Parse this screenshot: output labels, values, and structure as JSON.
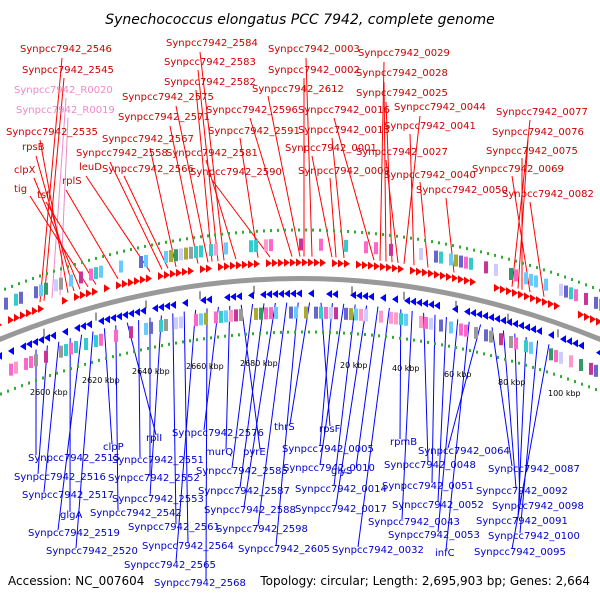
{
  "title": "Synechococcus elongatus PCC 7942, complete genome",
  "footer": {
    "accession": "Accession: NC_007604",
    "info": "Topology: circular; Length: 2,695,903 bp; Genes: 2,664"
  },
  "colors": {
    "forward": "#ff0000",
    "reverse": "#0000ff",
    "rna": "#ee88cc",
    "backbone": "#999999"
  },
  "ticks": [
    "2600 kbp",
    "2620 kbp",
    "2640 kbp",
    "2660 kbp",
    "2680 kbp",
    "20 kbp",
    "40 kbp",
    "60 kbp",
    "80 kbp",
    "100 kbp"
  ],
  "top_labels": [
    "Synpcc7942_2546",
    "Synpcc7942_2545",
    "Synpcc7942_R0020",
    "Synpcc7942_R0019",
    "Synpcc7942_2535",
    "rpsB",
    "clpX",
    "tig",
    "tsf",
    "rplS",
    "leuD",
    "Synpcc7942_2558",
    "Synpcc7942_2566",
    "Synpcc7942_2567",
    "Synpcc7942_2571",
    "Synpcc7942_2575",
    "Synpcc7942_2582",
    "Synpcc7942_2583",
    "Synpcc7942_2584",
    "Synpcc7942_2581",
    "Synpcc7942_2591",
    "Synpcc7942_2590",
    "Synpcc7942_2596",
    "Synpcc7942_2612",
    "Synpcc7942_0002",
    "Synpcc7942_0003",
    "Synpcc7942_0001",
    "Synpcc7942_0009",
    "Synpcc7942_0013",
    "Synpcc7942_0016",
    "Synpcc7942_0029",
    "Synpcc7942_0028",
    "Synpcc7942_0025",
    "Synpcc7942_0027",
    "Synpcc7942_0044",
    "Synpcc7942_0041",
    "Synpcc7942_0040",
    "Synpcc7942_0050",
    "Synpcc7942_0077",
    "Synpcc7942_0076",
    "Synpcc7942_0075",
    "Synpcc7942_0069",
    "Synpcc7942_0082"
  ],
  "bottom_labels": [
    "Synpcc7942_2515",
    "Synpcc7942_2516",
    "Synpcc7942_2517",
    "glgA",
    "Synpcc7942_2519",
    "Synpcc7942_2520",
    "clpP",
    "Synpcc7942_2542",
    "rplI",
    "Synpcc7942_2551",
    "Synpcc7942_2552",
    "Synpcc7942_2553",
    "Synpcc7942_2561",
    "Synpcc7942_2564",
    "Synpcc7942_2565",
    "Synpcc7942_2568",
    "Synpcc7942_2576",
    "murQ",
    "pyrE",
    "Synpcc7942_2585",
    "Synpcc7942_2587",
    "Synpcc7942_2588",
    "Synpcc7942_2598",
    "Synpcc7942_2605",
    "thrS",
    "rpsF",
    "Synpcc7942_0005",
    "Synpcc7942_0010",
    "Synpcc7942_0014",
    "Synpcc7942_0017",
    "glyS",
    "Synpcc7942_0032",
    "rpmB",
    "Synpcc7942_0043",
    "Synpcc7942_0048",
    "Synpcc7942_0051",
    "Synpcc7942_0052",
    "Synpcc7942_0053",
    "infC",
    "Synpcc7942_0064",
    "Synpcc7942_0087",
    "Synpcc7942_0092",
    "Synpcc7942_0098",
    "Synpcc7942_0091",
    "Synpcc7942_0100",
    "Synpcc7942_0095"
  ]
}
